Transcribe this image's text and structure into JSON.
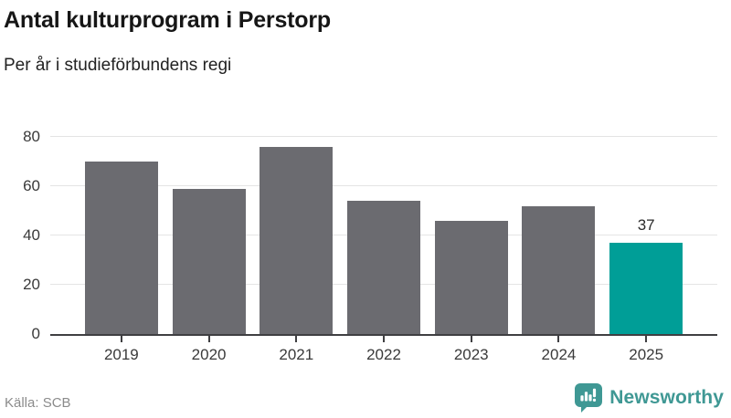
{
  "title": "Antal kulturprogram i Perstorp",
  "subtitle": "Per år i studieförbundens regi",
  "source": "Källa: SCB",
  "brand": {
    "name": "Newsworthy",
    "icon": "newsworthy-bubble-chart-icon"
  },
  "colors": {
    "bar": "#6b6b70",
    "highlight": "#009e97",
    "brand_teal": "#3f9894",
    "grid": "#e4e4e4",
    "axis": "#3f3f42",
    "tick_label": "#3a3a3a"
  },
  "chart_data": {
    "type": "bar",
    "categories": [
      "2019",
      "2020",
      "2021",
      "2022",
      "2023",
      "2024",
      "2025"
    ],
    "values": [
      70,
      59,
      76,
      54,
      46,
      52,
      37
    ],
    "title": "Antal kulturprogram i Perstorp",
    "subtitle": "Per år i studieförbundens regi",
    "xlabel": "",
    "ylabel": "",
    "ylim": [
      0,
      80
    ],
    "yticks": [
      0,
      20,
      40,
      60,
      80
    ],
    "grid": true,
    "legend": "none",
    "highlight_index": 6,
    "data_labels": [
      {
        "index": 6,
        "text": "37"
      }
    ]
  }
}
